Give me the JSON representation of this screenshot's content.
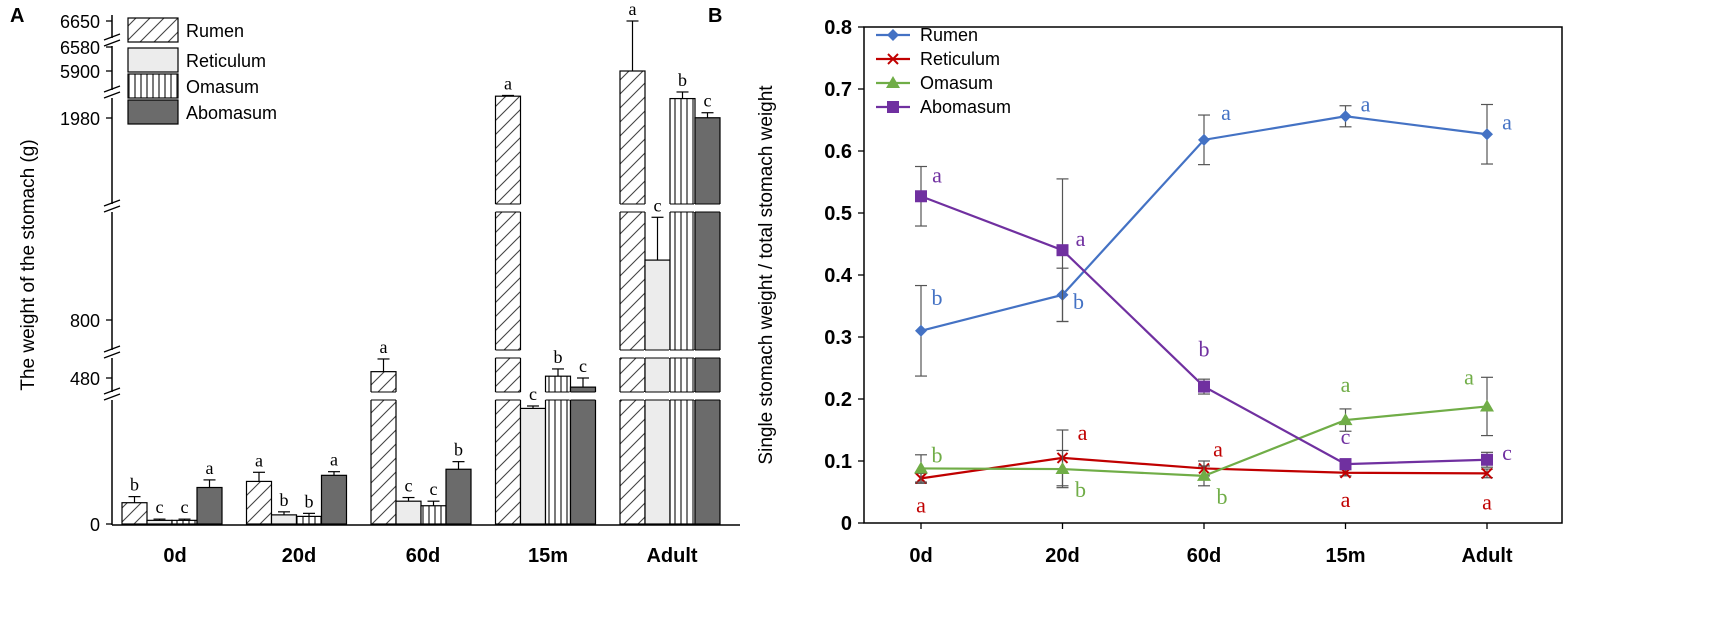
{
  "chart_data": [
    {
      "panel_label": "A",
      "type": "bar",
      "title": "",
      "xlabel": "",
      "ylabel": "The weight of the stomach (g)",
      "categories": [
        "0d",
        "20d",
        "60d",
        "15m",
        "Adult"
      ],
      "y_ticks": [
        "0",
        "480",
        "800",
        "1980",
        "5900",
        "6580",
        "6650"
      ],
      "axis_breaks": true,
      "legend_position": "top-left",
      "series": [
        {
          "name": "Rumen",
          "fill": "diagonal-hatch",
          "values": [
            70,
            140,
            515,
            3800,
            5900
          ],
          "errors": [
            20,
            30,
            70,
            60,
            750
          ],
          "letters": [
            "b",
            "a",
            "a",
            "a",
            "a"
          ]
        },
        {
          "name": "Reticulum",
          "fill": "light-gray",
          "values": [
            12,
            30,
            75,
            380,
            1150
          ],
          "errors": [
            4,
            10,
            12,
            8,
            250
          ],
          "letters": [
            "c",
            "b",
            "c",
            "c",
            "c"
          ]
        },
        {
          "name": "Omasum",
          "fill": "vertical-lines",
          "values": [
            12,
            25,
            60,
            490,
            3600
          ],
          "errors": [
            4,
            10,
            15,
            40,
            550
          ],
          "letters": [
            "c",
            "b",
            "c",
            "b",
            "b"
          ]
        },
        {
          "name": "Abomasum",
          "fill": "dark-gray",
          "values": [
            120,
            160,
            180,
            450,
            2000
          ],
          "errors": [
            25,
            12,
            25,
            30,
            420
          ],
          "letters": [
            "a",
            "a",
            "b",
            "c",
            "c"
          ]
        }
      ],
      "colors": {
        "Rumen": "#ffffff",
        "Reticulum": "#ececec",
        "Omasum": "#ffffff",
        "Abomasum": "#6b6b6b"
      }
    },
    {
      "panel_label": "B",
      "type": "line",
      "title": "",
      "xlabel": "",
      "ylabel": "Single stomach weight / total stomach weight",
      "categories": [
        "0d",
        "20d",
        "60d",
        "15m",
        "Adult"
      ],
      "ylim": [
        0,
        0.8
      ],
      "y_ticks": [
        "0",
        "0.1",
        "0.2",
        "0.3",
        "0.4",
        "0.5",
        "0.6",
        "0.7",
        "0.8"
      ],
      "legend_position": "top-left",
      "series": [
        {
          "name": "Rumen",
          "marker": "diamond",
          "color": "#4472c4",
          "values": [
            0.31,
            0.368,
            0.618,
            0.656,
            0.627
          ],
          "errors": [
            0.073,
            0.043,
            0.04,
            0.017,
            0.048
          ],
          "letters": [
            "b",
            "b",
            "a",
            "a",
            "a"
          ]
        },
        {
          "name": "Reticulum",
          "marker": "x",
          "color": "#c00000",
          "values": [
            0.072,
            0.105,
            0.088,
            0.081,
            0.08
          ],
          "errors": [
            0.008,
            0.045,
            0.012,
            0.005,
            0.007
          ],
          "letters": [
            "a",
            "a",
            "a",
            "a",
            "a"
          ]
        },
        {
          "name": "Omasum",
          "marker": "triangle",
          "color": "#70ad47",
          "values": [
            0.088,
            0.087,
            0.076,
            0.166,
            0.188
          ],
          "errors": [
            0.022,
            0.03,
            0.016,
            0.018,
            0.047
          ],
          "letters": [
            "b",
            "b",
            "b",
            "a",
            "a"
          ]
        },
        {
          "name": "Abomasum",
          "marker": "square",
          "color": "#7030a0",
          "values": [
            0.527,
            0.44,
            0.22,
            0.095,
            0.102
          ],
          "errors": [
            0.048,
            0.115,
            0.012,
            0.006,
            0.012
          ],
          "letters": [
            "a",
            "a",
            "b",
            "c",
            "c"
          ]
        }
      ]
    }
  ]
}
